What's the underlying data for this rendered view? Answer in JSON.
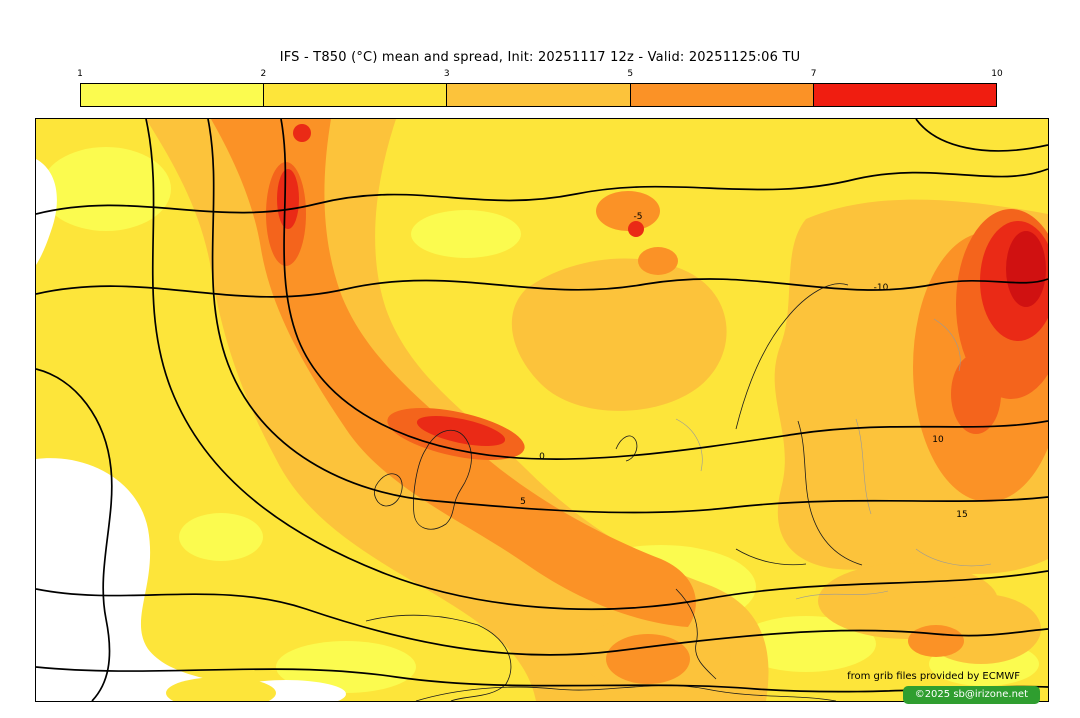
{
  "header": {
    "title": "IFS - T850 (°C) mean and spread, Init: 20251117 12z - Valid: 20251125:06 TU"
  },
  "colorbar": {
    "ticks": [
      "1",
      "2",
      "3",
      "5",
      "7",
      "10"
    ],
    "segments": [
      {
        "range": "1-2",
        "color": "#fbfb4f"
      },
      {
        "range": "2-3",
        "color": "#fde53a"
      },
      {
        "range": "3-5",
        "color": "#fcc33b"
      },
      {
        "range": "5-7",
        "color": "#fb9226"
      },
      {
        "range": "7-10",
        "color": "#f01d10"
      }
    ]
  },
  "map": {
    "contour_labels": [
      "-10",
      "-5",
      "0",
      "5",
      "10",
      "15"
    ],
    "palette": {
      "spread_lt_1": "#ffffff",
      "spread_1_2": "#fbfb4f",
      "spread_2_3": "#fde53a",
      "spread_3_5": "#fcc33b",
      "spread_5_7": "#fb9226",
      "spread_7_10": "#ea2a16"
    }
  },
  "credits": {
    "source": "from grib files provided by ECMWF",
    "copyright": "©2025 sb@irizone.net",
    "badge_color": "#2f9e2f"
  }
}
